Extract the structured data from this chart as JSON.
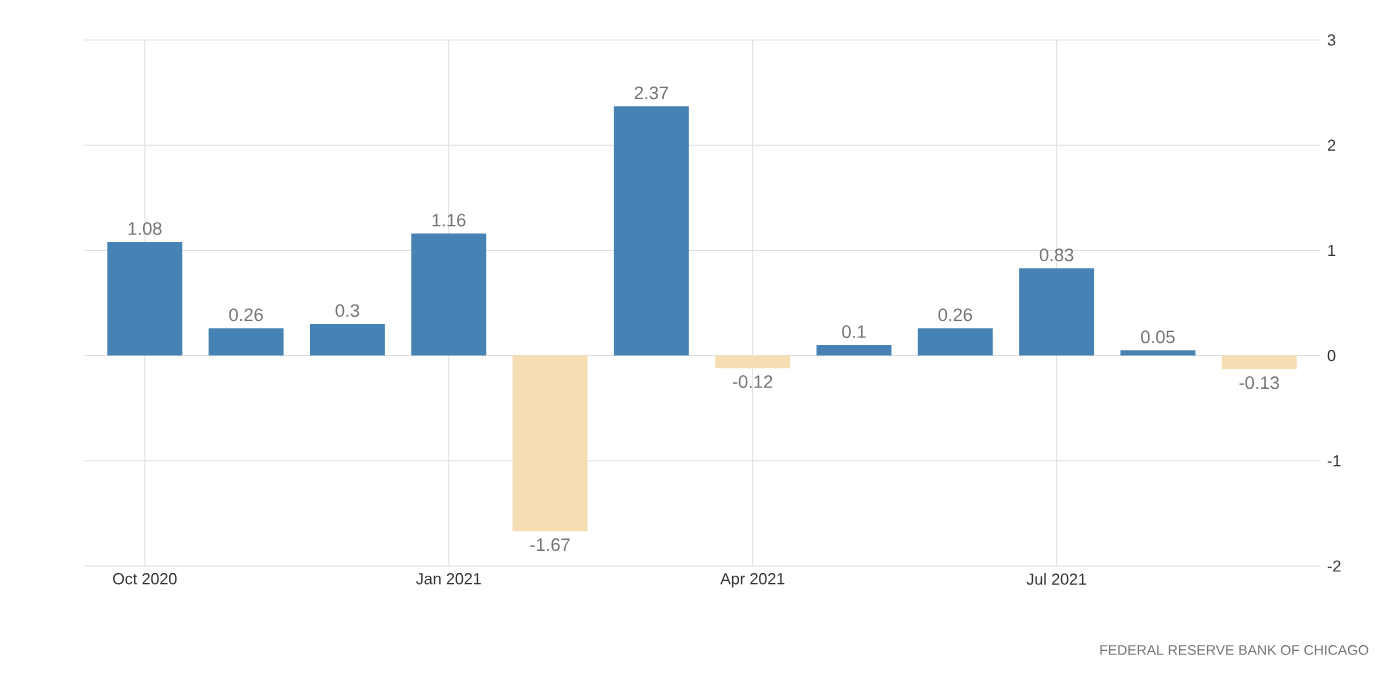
{
  "chart_data": {
    "type": "bar",
    "categories": [
      "Oct 2020",
      null,
      null,
      "Jan 2021",
      null,
      null,
      "Apr 2021",
      null,
      null,
      "Jul 2021",
      null,
      null
    ],
    "values": [
      1.08,
      0.26,
      0.3,
      1.16,
      -1.67,
      2.37,
      -0.12,
      0.1,
      0.26,
      0.83,
      0.05,
      -0.13
    ],
    "colors": [
      "#4682b4",
      "#4682b4",
      "#4682b4",
      "#4682b4",
      "#f5deb3",
      "#4682b4",
      "#f5deb3",
      "#4682b4",
      "#4682b4",
      "#4682b4",
      "#4682b4",
      "#f5deb3"
    ],
    "ylim": [
      -2,
      3
    ],
    "yticks": [
      -2,
      -1,
      0,
      1,
      2,
      3
    ],
    "grid": true,
    "data_labels": true,
    "annotations": [
      "FEDERAL RESERVE BANK OF CHICAGO"
    ]
  }
}
